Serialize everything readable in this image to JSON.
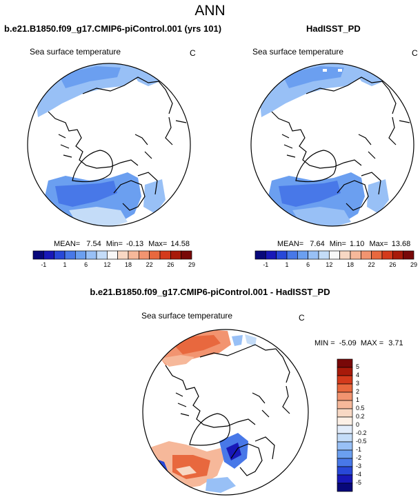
{
  "page_title": "ANN",
  "panels": {
    "model": {
      "case_title": "b.e21.B1850.f09_g17.CMIP6-piControl.001 (yrs 101)",
      "variable": "Sea surface temperature",
      "units": "C",
      "mean_label": "MEAN=",
      "mean": "7.54",
      "min_label": "Min=",
      "min": "-0.13",
      "max_label": "Max=",
      "max": "14.58"
    },
    "obs": {
      "case_title": "HadISST_PD",
      "variable": "Sea surface temperature",
      "units": "C",
      "mean_label": "MEAN=",
      "mean": "7.64",
      "min_label": "Min=",
      "min": "1.10",
      "max_label": "Max=",
      "max": "13.68"
    },
    "diff": {
      "case_title": "b.e21.B1850.f09_g17.CMIP6-piControl.001 - HadISST_PD",
      "variable": "Sea surface temperature",
      "units": "C",
      "min_label": "MIN =",
      "min": "-5.09",
      "max_label": "MAX =",
      "max": "3.71"
    }
  },
  "colors": {
    "abs_bar": [
      "#08087a",
      "#1818b8",
      "#2848d8",
      "#4878e8",
      "#6b9ff0",
      "#98c0f6",
      "#c4dcf8",
      "#f8f8f8",
      "#f8d8c4",
      "#f6b89a",
      "#f29470",
      "#e8683e",
      "#d43a1c",
      "#a81a0a",
      "#780808"
    ],
    "diff_bar": [
      "#780808",
      "#a81a0a",
      "#d43a1c",
      "#e8683e",
      "#f29470",
      "#f6b89a",
      "#f8d8c4",
      "#fdf0e6",
      "#e2ecfa",
      "#c4dcf8",
      "#98c0f6",
      "#6b9ff0",
      "#4878e8",
      "#2848d8",
      "#1818b8",
      "#08087a"
    ]
  },
  "chart_data": [
    {
      "type": "heatmap",
      "title": "Sea surface temperature",
      "projection": "north polar stereographic",
      "units": "C",
      "colorbar_labels": [
        "-1",
        "1",
        "6",
        "12",
        "18",
        "22",
        "26",
        "29"
      ],
      "statistics": {
        "mean": 7.54,
        "min": -0.13,
        "max": 14.58
      }
    },
    {
      "type": "heatmap",
      "title": "Sea surface temperature",
      "projection": "north polar stereographic",
      "units": "C",
      "colorbar_labels": [
        "-1",
        "1",
        "6",
        "12",
        "18",
        "22",
        "26",
        "29"
      ],
      "statistics": {
        "mean": 7.64,
        "min": 1.1,
        "max": 13.68
      }
    },
    {
      "type": "heatmap",
      "title": "Sea surface temperature",
      "projection": "north polar stereographic",
      "units": "C",
      "colorbar_labels": [
        "5",
        "4",
        "3",
        "2",
        "1",
        "0.5",
        "0.2",
        "0",
        "-0.2",
        "-0.5",
        "-1",
        "-2",
        "-3",
        "-4",
        "-5"
      ],
      "statistics": {
        "min": -5.09,
        "max": 3.71
      }
    }
  ]
}
